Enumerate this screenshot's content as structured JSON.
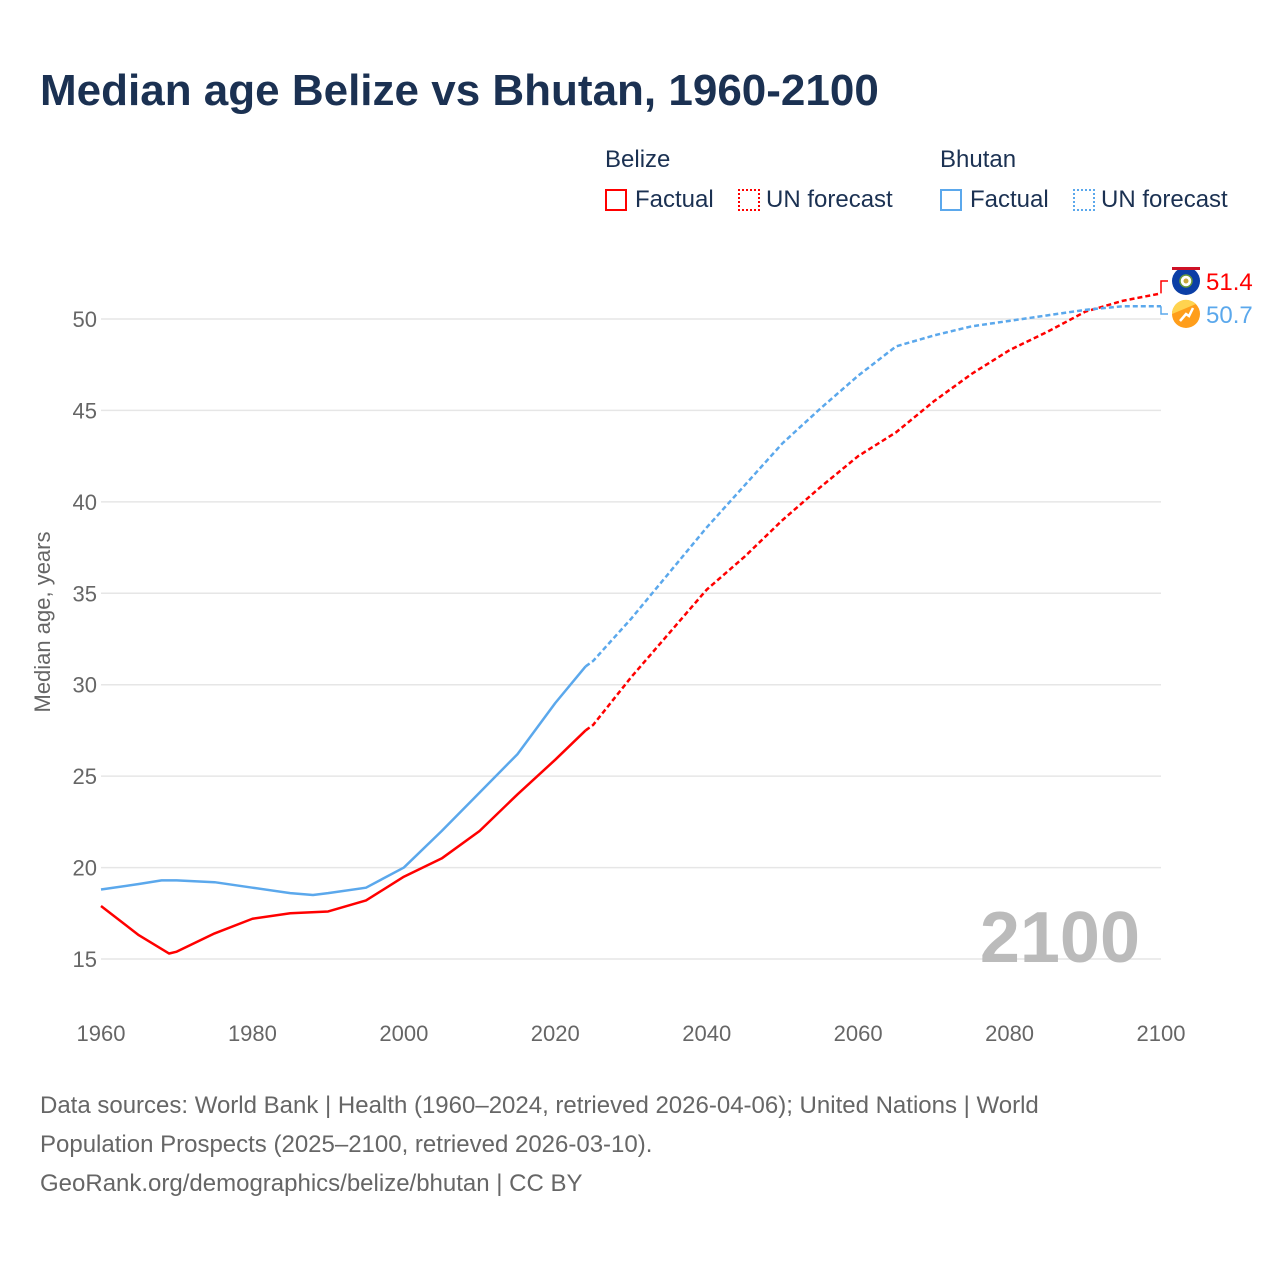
{
  "title": "Median age Belize vs Bhutan, 1960-2100",
  "legend": {
    "groups": [
      {
        "name": "Belize",
        "factual": "Factual",
        "forecast": "UN forecast",
        "color": "#ff0000"
      },
      {
        "name": "Bhutan",
        "factual": "Factual",
        "forecast": "UN forecast",
        "color": "#5ba8ec"
      }
    ]
  },
  "year_watermark": "2100",
  "footer": {
    "line1": "Data sources: World Bank | Health (1960–2024, retrieved 2026-04-06); United Nations | World",
    "line2": "Population Prospects (2025–2100, retrieved 2026-03-10).",
    "line3": "GeoRank.org/demographics/belize/bhutan | CC BY"
  },
  "chart_data": {
    "type": "line",
    "title": "Median age Belize vs Bhutan, 1960-2100",
    "xlabel": "",
    "ylabel": "Median age, years",
    "xlim": [
      1960,
      2100
    ],
    "ylim": [
      12.5,
      52
    ],
    "xticks": [
      "1960",
      "1980",
      "2000",
      "2020",
      "2040",
      "2060",
      "2080",
      "2100"
    ],
    "yticks": [
      "15",
      "20",
      "25",
      "30",
      "35",
      "40",
      "45",
      "50"
    ],
    "grid": true,
    "forecast_start": 2024,
    "end_labels": [
      "51.4",
      "50.7"
    ],
    "series": [
      {
        "name": "Belize",
        "color": "#ff0000",
        "x": [
          1960,
          1965,
          1969,
          1970,
          1975,
          1980,
          1985,
          1990,
          1995,
          2000,
          2005,
          2010,
          2015,
          2020,
          2024,
          2025,
          2030,
          2035,
          2040,
          2045,
          2050,
          2055,
          2060,
          2065,
          2070,
          2075,
          2080,
          2085,
          2090,
          2095,
          2100
        ],
        "y": [
          17.9,
          16.3,
          15.3,
          15.4,
          16.4,
          17.2,
          17.5,
          17.6,
          18.2,
          19.5,
          20.5,
          22.0,
          24.0,
          25.9,
          27.5,
          27.8,
          30.4,
          32.8,
          35.2,
          37.0,
          39.0,
          40.8,
          42.5,
          43.8,
          45.5,
          47.0,
          48.3,
          49.3,
          50.4,
          51.0,
          51.4
        ]
      },
      {
        "name": "Bhutan",
        "color": "#5ba8ec",
        "x": [
          1960,
          1965,
          1968,
          1970,
          1975,
          1980,
          1985,
          1988,
          1990,
          1995,
          2000,
          2005,
          2010,
          2015,
          2020,
          2024,
          2025,
          2030,
          2035,
          2040,
          2045,
          2050,
          2055,
          2060,
          2065,
          2070,
          2075,
          2080,
          2085,
          2090,
          2095,
          2100
        ],
        "y": [
          18.8,
          19.1,
          19.3,
          19.3,
          19.2,
          18.9,
          18.6,
          18.5,
          18.6,
          18.9,
          20.0,
          22.0,
          24.1,
          26.2,
          29.0,
          31.0,
          31.3,
          33.6,
          36.1,
          38.6,
          40.9,
          43.2,
          45.1,
          46.9,
          48.5,
          49.1,
          49.6,
          49.9,
          50.2,
          50.5,
          50.7,
          50.7
        ]
      }
    ]
  }
}
